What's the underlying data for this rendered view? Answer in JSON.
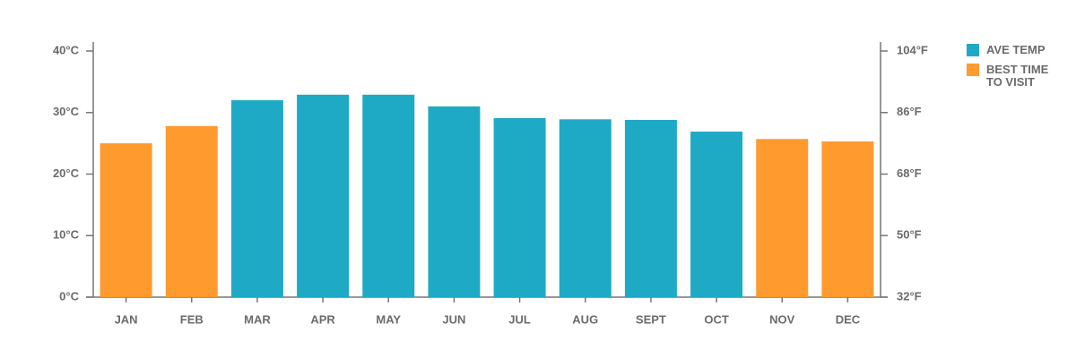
{
  "chart_data": {
    "type": "bar",
    "categories": [
      "JAN",
      "FEB",
      "MAR",
      "APR",
      "MAY",
      "JUN",
      "JUL",
      "AUG",
      "SEPT",
      "OCT",
      "NOV",
      "DEC"
    ],
    "series": [
      {
        "name": "AVE TEMP",
        "color": "#1eaac5",
        "values": [
          null,
          null,
          32.0,
          32.9,
          32.9,
          31.0,
          29.1,
          28.9,
          28.8,
          26.9,
          null,
          null
        ]
      },
      {
        "name": "BEST TIME TO VISIT",
        "color": "#ff9a2e",
        "values": [
          25.0,
          27.8,
          null,
          null,
          null,
          null,
          null,
          null,
          null,
          null,
          25.7,
          25.3
        ]
      }
    ],
    "ylim": [
      0,
      40
    ],
    "yticks": [
      {
        "value": 0,
        "label": "0°C"
      },
      {
        "value": 10,
        "label": "10°C"
      },
      {
        "value": 20,
        "label": "20°C"
      },
      {
        "value": 30,
        "label": "30°C"
      },
      {
        "value": 40,
        "label": "40°C"
      }
    ],
    "y2lim": [
      32,
      104
    ],
    "y2ticks": [
      {
        "value": 32,
        "label": "32°F"
      },
      {
        "value": 50,
        "label": "50°F"
      },
      {
        "value": 68,
        "label": "68°F"
      },
      {
        "value": 86,
        "label": "86°F"
      },
      {
        "value": 104,
        "label": "104°F"
      }
    ],
    "legend": "right"
  }
}
